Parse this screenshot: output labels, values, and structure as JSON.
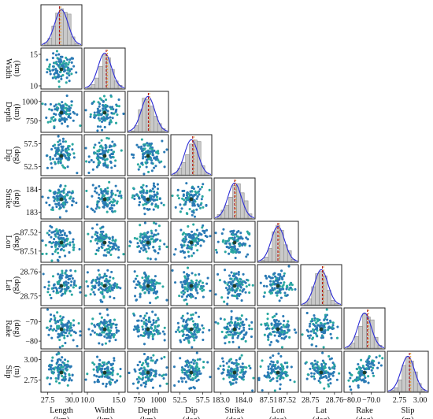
{
  "chart_data": {
    "type": "scatter",
    "variables": [
      {
        "name": "Length",
        "unit": "(km)",
        "xticks": [
          27.5,
          30.0
        ],
        "xtick_labels": [
          "27.5",
          "30.0"
        ],
        "yticks": [],
        "ytick_labels": [],
        "range": [
          26.8,
          31.0
        ],
        "mean": 28.7
      },
      {
        "name": "Width",
        "unit": "(km)",
        "xticks": [
          10.0,
          15.0
        ],
        "xtick_labels": [
          "10.0",
          "15.0"
        ],
        "yticks": [
          10,
          15
        ],
        "ytick_labels": [
          "10",
          "15"
        ],
        "range": [
          9.5,
          16.0
        ],
        "mean": 13.0
      },
      {
        "name": "Depth",
        "unit": "(km)",
        "xticks": [
          750,
          1000
        ],
        "xtick_labels": [
          "750",
          "1000"
        ],
        "yticks": [
          750,
          1000
        ],
        "ytick_labels": [
          "750",
          "1000"
        ],
        "range": [
          600,
          1130
        ],
        "mean": 870
      },
      {
        "name": "Dip",
        "unit": "(deg)",
        "xticks": [
          52.5,
          57.5
        ],
        "xtick_labels": [
          "52.5",
          "57.5"
        ],
        "yticks": [
          52.5,
          57.5
        ],
        "ytick_labels": [
          "52.5",
          "57.5"
        ],
        "range": [
          50.5,
          59.5
        ],
        "mean": 55.3
      },
      {
        "name": "Strike",
        "unit": "(deg)",
        "xticks": [
          183.0,
          184.0
        ],
        "xtick_labels": [
          "183.0",
          "184.0"
        ],
        "yticks": [
          183,
          184
        ],
        "ytick_labels": [
          "183",
          "184"
        ],
        "range": [
          182.7,
          184.5
        ],
        "mean": 183.6
      },
      {
        "name": "Lon",
        "unit": "(deg)",
        "xticks": [
          87.51,
          87.52
        ],
        "xtick_labels": [
          "87.51",
          "87.52"
        ],
        "yticks": [
          87.51,
          87.52
        ],
        "ytick_labels": [
          "87.51",
          "87.52"
        ],
        "range": [
          87.504,
          87.526
        ],
        "mean": 87.515
      },
      {
        "name": "Lat",
        "unit": "(deg)",
        "xticks": [
          28.75,
          28.76
        ],
        "xtick_labels": [
          "28.75",
          "28.76"
        ],
        "yticks": [
          28.75,
          28.76
        ],
        "ytick_labels": [
          "28.75",
          "28.76"
        ],
        "range": [
          28.746,
          28.763
        ],
        "mean": 28.755
      },
      {
        "name": "Rake",
        "unit": "(deg)",
        "xticks": [
          -80,
          -70
        ],
        "xtick_labels": [
          "−80.0",
          "−70.0"
        ],
        "yticks": [
          -80,
          -70
        ],
        "ytick_labels": [
          "−80",
          "−70"
        ],
        "range": [
          -84,
          -63
        ],
        "mean": -72
      },
      {
        "name": "Slip",
        "unit": "(m)",
        "xticks": [
          2.75,
          3.0
        ],
        "xtick_labels": [
          "2.75",
          "3.00"
        ],
        "yticks": [
          2.75,
          3.0
        ],
        "ytick_labels": [
          "2.75",
          "3.00"
        ],
        "range": [
          2.6,
          3.1
        ],
        "mean": 2.87
      }
    ],
    "histograms": [
      [
        0.06,
        0.18,
        0.52,
        0.88,
        1.0,
        0.9,
        0.85,
        0.22,
        0.04
      ],
      [
        0.04,
        0.1,
        0.28,
        0.6,
        0.93,
        0.84,
        0.52,
        0.2,
        0.08
      ],
      [
        0.02,
        0.16,
        0.6,
        0.92,
        0.88,
        0.7,
        0.42,
        0.22,
        0.08
      ],
      [
        0.06,
        0.18,
        0.34,
        0.56,
        0.85,
        0.96,
        0.92,
        0.25,
        0.05
      ],
      [
        0.1,
        0.22,
        0.36,
        0.58,
        0.9,
        0.95,
        0.7,
        0.48,
        0.12
      ],
      [
        0.04,
        0.12,
        0.36,
        0.82,
        1.0,
        0.86,
        0.46,
        0.3,
        0.06
      ],
      [
        0.05,
        0.16,
        0.5,
        0.86,
        0.92,
        0.8,
        0.4,
        0.12,
        0.03
      ],
      [
        0.05,
        0.14,
        0.32,
        0.6,
        0.95,
        0.86,
        0.78,
        0.3,
        0.08
      ],
      [
        0.04,
        0.1,
        0.32,
        0.72,
        0.96,
        0.84,
        0.54,
        0.22,
        0.06
      ]
    ],
    "correlations": [
      [
        1,
        0,
        0,
        0,
        0,
        0,
        0,
        0,
        0
      ],
      [
        0,
        1,
        0,
        0,
        0,
        -0.55,
        0,
        0,
        0
      ],
      [
        0,
        0,
        1,
        0,
        0,
        0,
        0,
        0,
        0
      ],
      [
        0,
        0,
        0,
        1,
        0,
        0.4,
        0,
        0,
        0
      ],
      [
        0,
        0,
        0,
        0,
        1,
        0,
        0,
        0,
        0
      ],
      [
        0,
        -0.55,
        0,
        0.4,
        0,
        1,
        0,
        0,
        0
      ],
      [
        0,
        0,
        0,
        0,
        0,
        0,
        1,
        0,
        0
      ],
      [
        0,
        0,
        0,
        0,
        0,
        0,
        0,
        1,
        0.6
      ],
      [
        0,
        0,
        0,
        0,
        0,
        0,
        0,
        0.6,
        1
      ]
    ],
    "samples_per_panel": 100,
    "colors": {
      "points": "#2a7ab5",
      "points_alt": "#2aa8a0",
      "best_fit": "#1f3d2a",
      "hist_fill": "#c9c9c9",
      "hist_edge": "#8a8a8a",
      "density_curve": "#2b2bd6",
      "mean_line": "#b01c1c",
      "median_line": "#e6a040",
      "panel_border": "#222222"
    }
  }
}
